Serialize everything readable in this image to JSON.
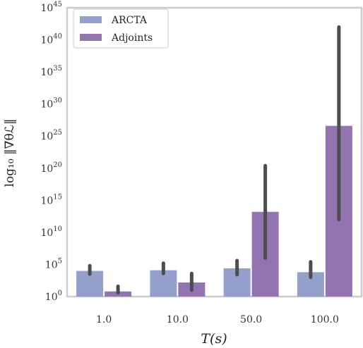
{
  "chart_data": {
    "type": "bar",
    "categories": [
      "1.0",
      "10.0",
      "50.0",
      "100.0"
    ],
    "xlabel": "T(s)",
    "ylabel": "log₁₀ ‖∇θℒ‖",
    "yscale": "log",
    "ylim_exponent": [
      0,
      45
    ],
    "y_tick_base": "10",
    "y_tick_exponents": [
      "0",
      "5",
      "10",
      "15",
      "20",
      "25",
      "30",
      "35",
      "40",
      "45"
    ],
    "grid": false,
    "legend_position": "top-left",
    "series": [
      {
        "name": "ARCTA",
        "color": "#959fcb",
        "log10_values": [
          4.0,
          4.1,
          4.4,
          3.8
        ],
        "log10_error_low": [
          3.5,
          3.6,
          3.4,
          3.0
        ],
        "log10_error_high": [
          4.8,
          5.2,
          5.6,
          5.4
        ]
      },
      {
        "name": "Adjoints",
        "color": "#9275b0",
        "log10_values": [
          0.8,
          2.2,
          13.2,
          26.6
        ],
        "log10_error_low": [
          0.6,
          1.0,
          6.0,
          12.0
        ],
        "log10_error_high": [
          1.6,
          3.6,
          20.4,
          42.0
        ]
      }
    ]
  }
}
